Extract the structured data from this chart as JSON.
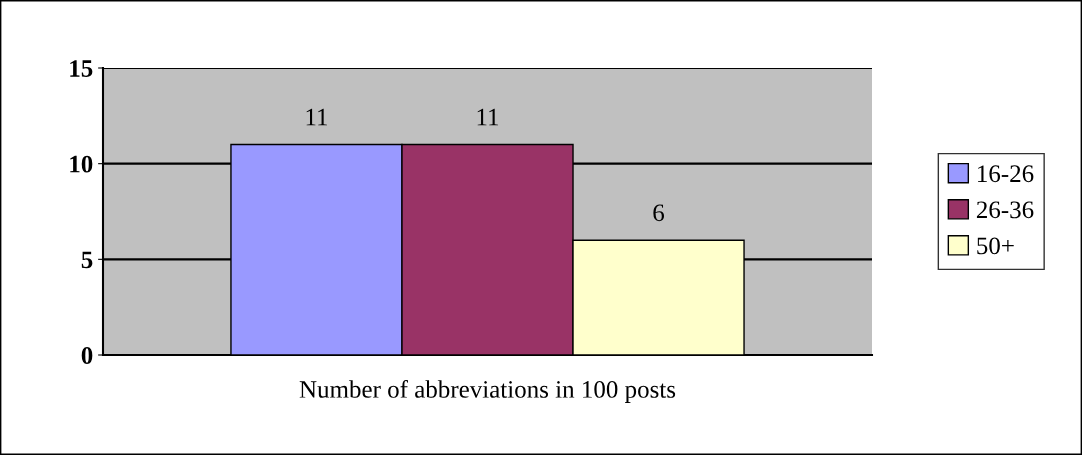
{
  "chart_data": {
    "type": "bar",
    "categories": [
      "Number of abbreviations in 100 posts"
    ],
    "series": [
      {
        "name": "16-26",
        "color": "#9999ff",
        "values": [
          11
        ]
      },
      {
        "name": "26-36",
        "color": "#993366",
        "values": [
          11
        ]
      },
      {
        "name": "50+",
        "color": "#ffffcc",
        "values": [
          6
        ]
      }
    ],
    "ylim": [
      0,
      15
    ],
    "yticks": [
      0,
      5,
      10,
      15
    ],
    "grid": "y",
    "legend": "right",
    "data_labels": true
  }
}
